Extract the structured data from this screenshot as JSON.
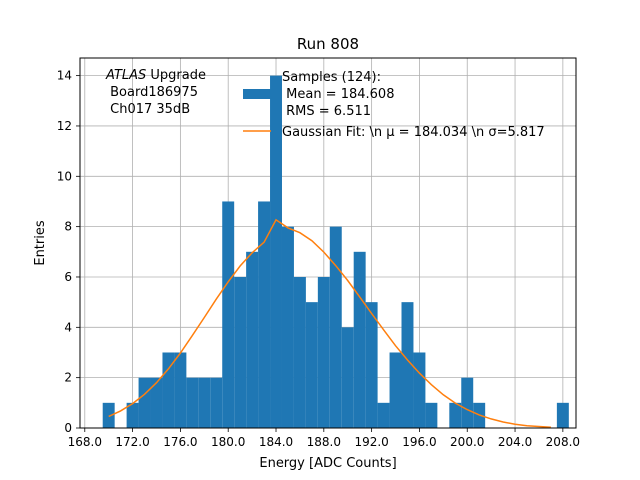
{
  "chart_data": {
    "type": "bar",
    "title": "Run 808",
    "xlabel": "Energy [ADC Counts]",
    "ylabel": "Entries",
    "xlim": [
      167.6,
      209.1
    ],
    "ylim": [
      0,
      14.7
    ],
    "grid": true,
    "xticks": [
      "168.0",
      "172.0",
      "176.0",
      "180.0",
      "184.0",
      "188.0",
      "192.0",
      "196.0",
      "200.0",
      "204.0",
      "208.0"
    ],
    "yticks": [
      "0",
      "2",
      "4",
      "6",
      "8",
      "10",
      "12",
      "14"
    ],
    "bin_edges": [
      169.5,
      170.5,
      171.5,
      172.5,
      173.5,
      174.5,
      175.5,
      176.5,
      177.5,
      178.5,
      179.5,
      180.5,
      181.5,
      182.5,
      183.5,
      184.5,
      185.5,
      186.5,
      187.5,
      188.5,
      189.5,
      190.5,
      191.5,
      192.5,
      193.5,
      194.5,
      195.5,
      196.5,
      197.5,
      198.5,
      199.5,
      200.5,
      201.5,
      202.5,
      203.5,
      204.5,
      205.5,
      206.5,
      207.5,
      208.5
    ],
    "series": [
      {
        "name": "Samples (124):\n Mean = 184.608\n RMS = 6.511",
        "kind": "histogram",
        "color": "#1f77b4",
        "values": [
          1,
          0,
          1,
          2,
          2,
          3,
          3,
          2,
          2,
          2,
          9,
          6,
          7,
          9,
          14,
          8,
          6,
          5,
          6,
          8,
          4,
          7,
          5,
          1,
          3,
          5,
          3,
          1,
          0,
          1,
          2,
          1,
          0,
          0,
          0,
          0,
          0,
          0,
          1
        ]
      },
      {
        "name": "Gaussian Fit: \\n μ = 184.034 \\n σ=5.817",
        "kind": "line",
        "color": "#ff7f0e",
        "x": [
          170.0,
          171.0,
          172.0,
          173.0,
          174.0,
          175.0,
          176.0,
          177.0,
          178.0,
          179.0,
          180.0,
          181.0,
          182.0,
          183.0,
          184.0,
          185.0,
          186.0,
          187.0,
          188.0,
          189.0,
          190.0,
          191.0,
          192.0,
          193.0,
          194.0,
          195.0,
          196.0,
          197.0,
          198.0,
          199.0,
          200.0,
          201.0,
          202.0,
          203.0,
          204.0,
          205.0,
          206.0,
          207.0
        ],
        "y": [
          0.46,
          0.68,
          0.97,
          1.34,
          1.8,
          2.35,
          2.98,
          3.67,
          4.39,
          5.12,
          5.81,
          6.44,
          6.96,
          7.38,
          8.27,
          7.95,
          7.76,
          7.44,
          6.99,
          6.45,
          5.86,
          5.21,
          4.55,
          3.9,
          3.27,
          2.7,
          2.18,
          1.72,
          1.32,
          0.99,
          0.73,
          0.52,
          0.36,
          0.24,
          0.15,
          0.09,
          0.06,
          0.03
        ]
      }
    ],
    "annotation": [
      "ATLAS",
      " Upgrade",
      " Board186975",
      " Ch017 35dB"
    ],
    "legend_position": "upper-right"
  }
}
